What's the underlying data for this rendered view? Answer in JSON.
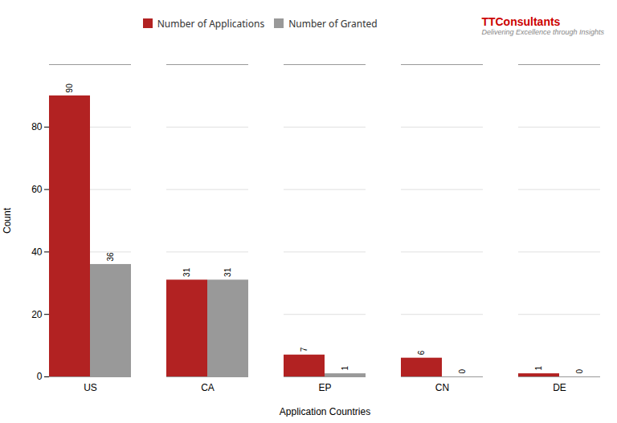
{
  "chart_data": {
    "type": "bar",
    "categories": [
      "US",
      "CA",
      "EP",
      "CN",
      "DE"
    ],
    "series": [
      {
        "name": "Number of Applications",
        "color": "#b22222",
        "values": [
          90,
          31,
          7,
          6,
          1
        ]
      },
      {
        "name": "Number of Granted",
        "color": "#999999",
        "values": [
          36,
          31,
          1,
          0,
          0
        ]
      }
    ],
    "xlabel": "Application Countries",
    "ylabel": "Count",
    "ylim": [
      0,
      100
    ],
    "yticks": [
      0,
      20,
      40,
      60,
      80
    ],
    "grid": true,
    "data_labels": true,
    "legend": "top",
    "annotations": [
      {
        "text": "TTConsultants",
        "color": "#cc0000"
      },
      {
        "text": "Delivering Excellence through Insights",
        "color": "#888888"
      }
    ]
  }
}
